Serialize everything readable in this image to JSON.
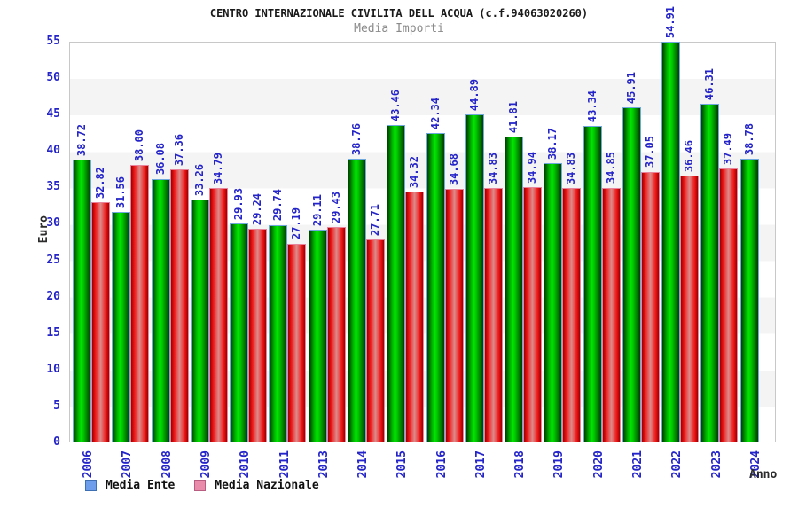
{
  "header": {
    "title": "CENTRO INTERNAZIONALE CIVILITA DELL ACQUA (c.f.94063020260)",
    "subtitle": "Media Importi"
  },
  "axes": {
    "y_title": "Euro",
    "x_title": "Anno",
    "y_ticks": [
      0,
      5,
      10,
      15,
      20,
      25,
      30,
      35,
      40,
      45,
      50,
      55
    ]
  },
  "legend": {
    "items": [
      {
        "label": "Media Ente",
        "swatch_fill": "#6d9eeb",
        "swatch_border": "#3d6fb4"
      },
      {
        "label": "Media Nazionale",
        "swatch_fill": "#e98cab",
        "swatch_border": "#b85c80"
      }
    ]
  },
  "chart_data": {
    "type": "bar",
    "title": "CENTRO INTERNAZIONALE CIVILITA DELL ACQUA (c.f.94063020260)",
    "subtitle": "Media Importi",
    "xlabel": "Anno",
    "ylabel": "Euro",
    "ylim": [
      0,
      55
    ],
    "ytick_step": 5,
    "grid_bands": true,
    "legend_position": "bottom-left",
    "categories": [
      "2006",
      "2007",
      "2008",
      "2009",
      "2010",
      "2011",
      "2013",
      "2014",
      "2015",
      "2016",
      "2017",
      "2018",
      "2019",
      "2020",
      "2021",
      "2022",
      "2023",
      "2024"
    ],
    "series": [
      {
        "name": "Media Ente",
        "bar_color": "#00cc00",
        "border_color": "#6fa8dc",
        "values": [
          38.72,
          31.56,
          36.08,
          33.26,
          29.93,
          29.74,
          29.11,
          38.76,
          43.46,
          42.34,
          44.89,
          41.81,
          38.17,
          43.34,
          45.91,
          54.91,
          46.31,
          38.78
        ]
      },
      {
        "name": "Media Nazionale",
        "bar_color": "#ee2222",
        "border_color": "#e8849c",
        "values": [
          32.82,
          38.0,
          37.36,
          34.79,
          29.24,
          27.19,
          29.43,
          27.71,
          34.32,
          34.68,
          34.83,
          34.94,
          34.83,
          34.85,
          37.05,
          36.46,
          37.49,
          null
        ]
      }
    ],
    "value_label_color": "#2424c8",
    "tick_label_color": "#2424c8"
  }
}
